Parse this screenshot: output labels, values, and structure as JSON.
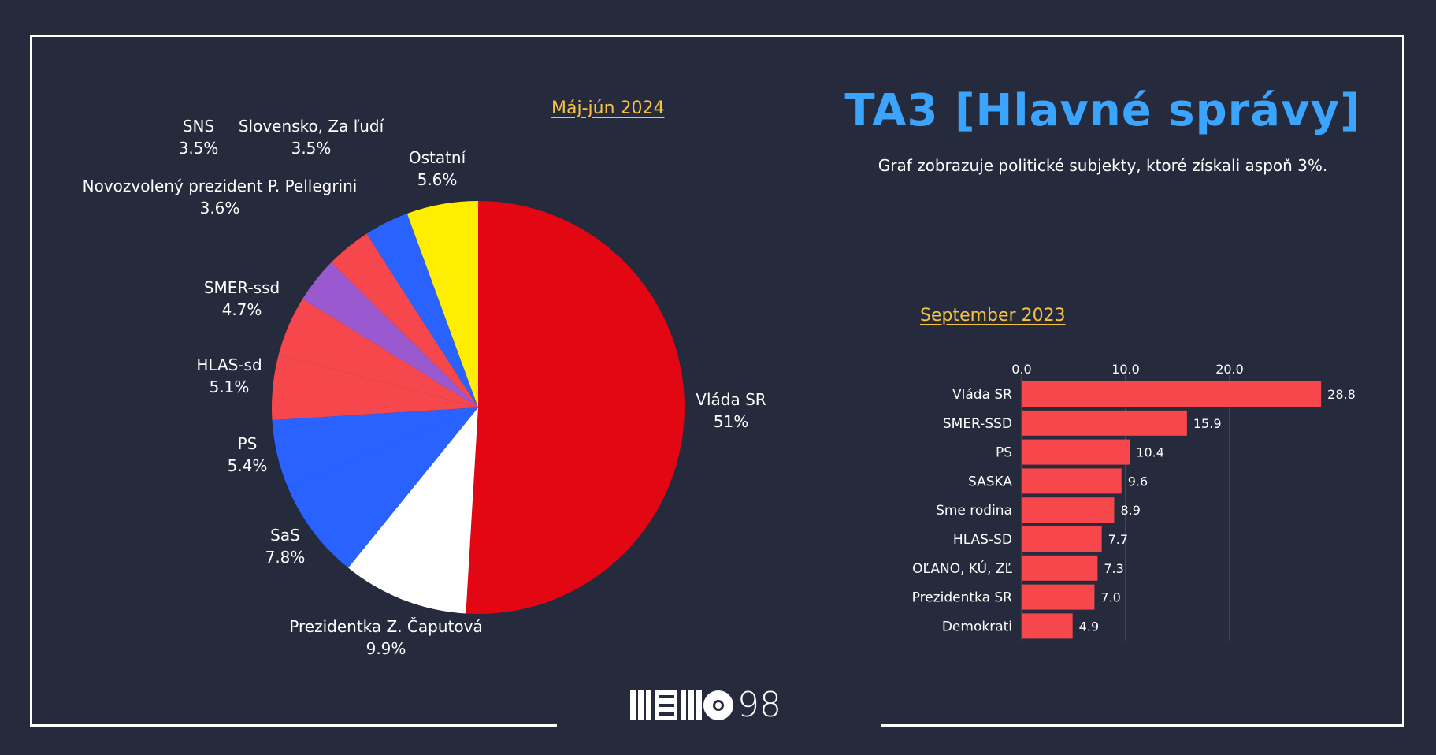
{
  "header": {
    "title": "TA3 [Hlavné správy]",
    "subtitle": "Graf zobrazuje politické subjekty, ktoré získali aspoň 3%."
  },
  "logo": {
    "text": "98"
  },
  "colors": {
    "background": "#252b3c",
    "title": "#3aa4ff",
    "period": "#f6c343",
    "bar": "#f5474c"
  },
  "chart_data": [
    {
      "type": "pie",
      "title": "Máj-jún 2024",
      "slices": [
        {
          "label": "Vláda SR",
          "value": 51,
          "value_label": "51%",
          "color": "#e30613"
        },
        {
          "label": "Prezidentka Z. Čaputová",
          "value": 9.9,
          "value_label": "9.9%",
          "color": "#ffffff"
        },
        {
          "label": "SaS",
          "value": 7.8,
          "value_label": "7.8%",
          "color": "#2962ff"
        },
        {
          "label": "PS",
          "value": 5.4,
          "value_label": "5.4%",
          "color": "#2962ff"
        },
        {
          "label": "HLAS-sd",
          "value": 5.1,
          "value_label": "5.1%",
          "color": "#f5474c"
        },
        {
          "label": "SMER-ssd",
          "value": 4.7,
          "value_label": "4.7%",
          "color": "#f5474c"
        },
        {
          "label": "Novozvolený prezident P. Pellegrini",
          "value": 3.6,
          "value_label": "3.6%",
          "color": "#9b59d0"
        },
        {
          "label": "Slovensko, Za ľudí",
          "value": 3.5,
          "value_label": "3.5%",
          "color": "#f5474c"
        },
        {
          "label": "SNS",
          "value": 3.5,
          "value_label": "3.5%",
          "color": "#2962ff"
        },
        {
          "label": "Ostatní",
          "value": 5.6,
          "value_label": "5.6%",
          "color": "#ffee00"
        }
      ]
    },
    {
      "type": "bar",
      "orientation": "horizontal",
      "title": "September 2023",
      "categories": [
        "Vláda SR",
        "SMER-SSD",
        "PS",
        "SASKA",
        "Sme rodina",
        "HLAS-SD",
        "OĽANO, KÚ, ZĽ",
        "Prezidentka SR",
        "Demokrati"
      ],
      "values": [
        28.8,
        15.9,
        10.4,
        9.6,
        8.9,
        7.7,
        7.3,
        7.0,
        4.9
      ],
      "value_labels": [
        "28.8",
        "15.9",
        "10.4",
        "9.6",
        "8.9",
        "7.7",
        "7.3",
        "7.0",
        "4.9"
      ],
      "ticks": [
        0,
        10,
        20
      ],
      "tick_labels": [
        "0.0",
        "10.0",
        "20.0"
      ],
      "xlim": [
        0,
        30
      ],
      "grid": true
    }
  ]
}
